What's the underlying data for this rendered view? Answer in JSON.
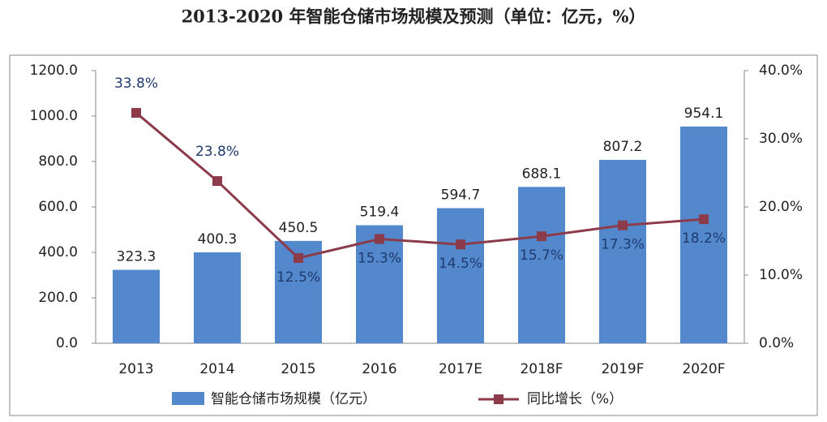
{
  "chart_data": {
    "type": "bar-line",
    "title": "2013-2020 年智能仓储市场规模及预测（单位：亿元，%）",
    "categories": [
      "2013",
      "2014",
      "2015",
      "2016",
      "2017E",
      "2018F",
      "2019F",
      "2020F"
    ],
    "series": [
      {
        "name": "智能仓储市场规模（亿元）",
        "type": "bar",
        "color": "#5389cc",
        "values": [
          323.3,
          400.3,
          450.5,
          519.4,
          594.7,
          688.1,
          807.2,
          954.1
        ]
      },
      {
        "name": "同比增长（%）",
        "type": "line",
        "axis": "y2",
        "color": "#8c3b4b",
        "values": [
          33.8,
          23.8,
          12.5,
          15.3,
          14.5,
          15.7,
          17.3,
          18.2
        ],
        "value_labels": [
          "33.8%",
          "23.8%",
          "12.5%",
          "15.3%",
          "14.5%",
          "15.7%",
          "17.3%",
          "18.2%"
        ]
      }
    ],
    "ylim": [
      0,
      1200
    ],
    "yticks": [
      {
        "value": 0,
        "label": "0.0"
      },
      {
        "value": 200,
        "label": "200.0"
      },
      {
        "value": 400,
        "label": "400.0"
      },
      {
        "value": 600,
        "label": "600.0"
      },
      {
        "value": 800,
        "label": "800.0"
      },
      {
        "value": 1000,
        "label": "1000.0"
      },
      {
        "value": 1200,
        "label": "1200.0"
      }
    ],
    "y2lim": [
      0,
      40
    ],
    "y2ticks": [
      {
        "value": 0,
        "label": "0.0%"
      },
      {
        "value": 10,
        "label": "10.0%"
      },
      {
        "value": 20,
        "label": "20.0%"
      },
      {
        "value": 30,
        "label": "30.0%"
      },
      {
        "value": 40,
        "label": "40.0%"
      }
    ],
    "grid": false,
    "legend": "bottom"
  }
}
